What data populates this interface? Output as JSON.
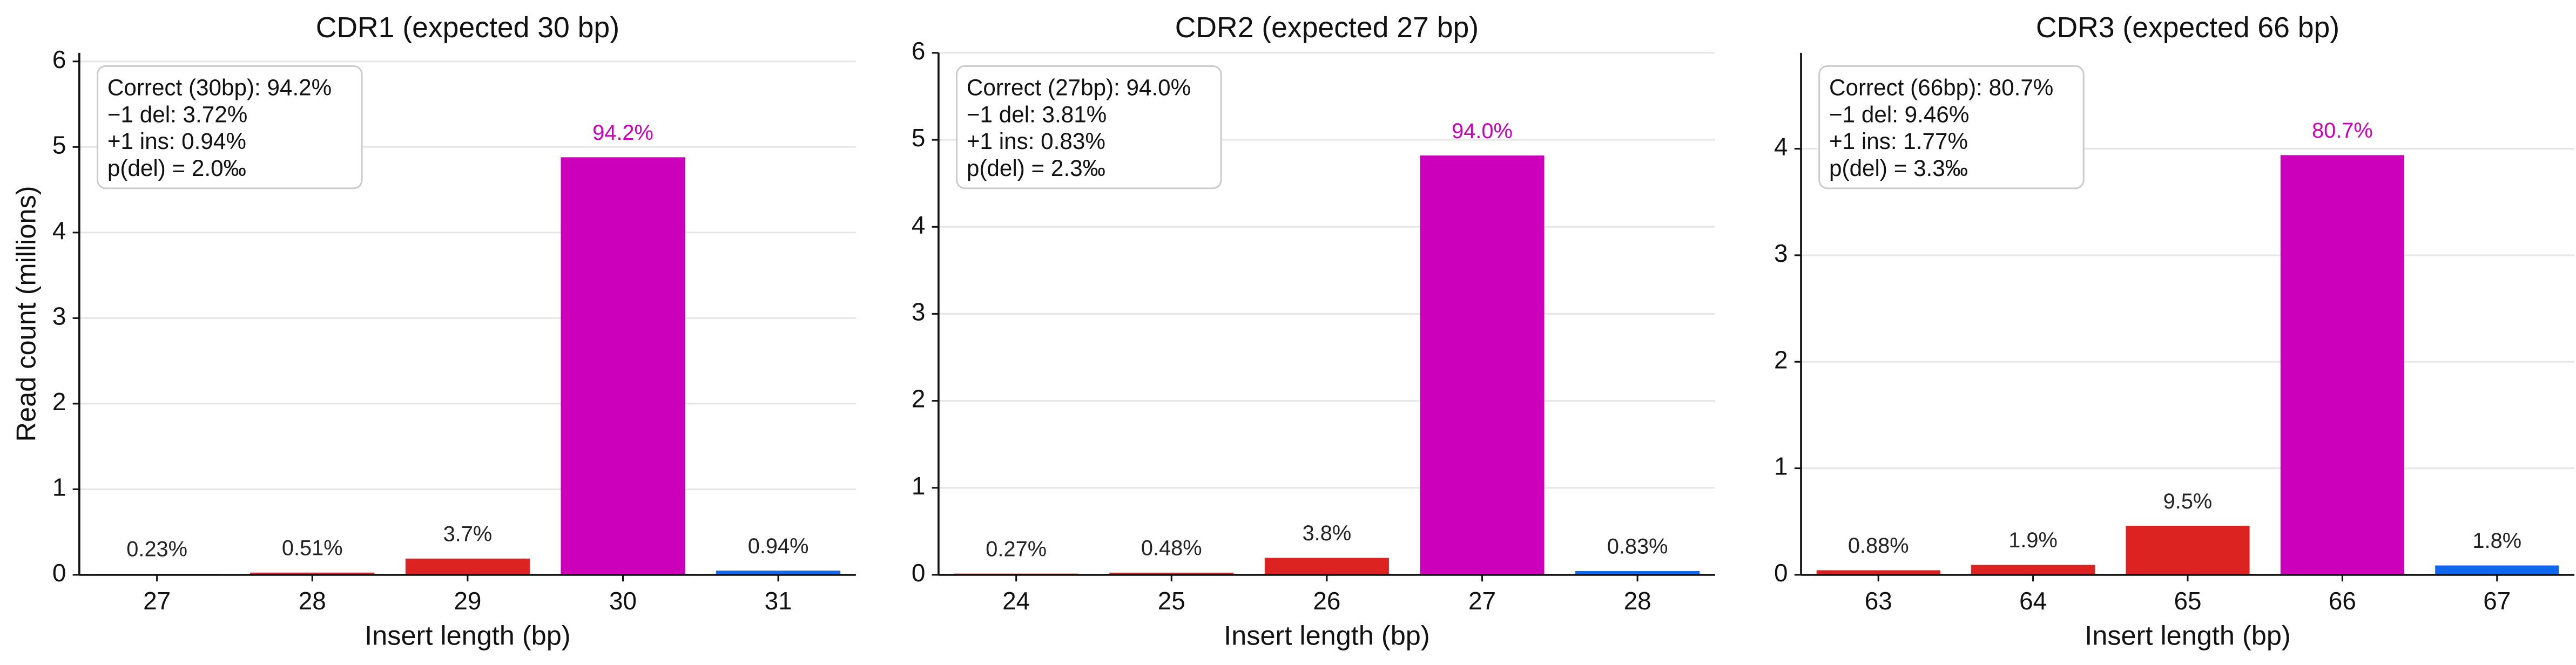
{
  "chart_data": [
    {
      "type": "bar",
      "title": "CDR1 (expected 30 bp)",
      "xlabel": "Insert length (bp)",
      "ylabel": "Read count (millions)",
      "categories": [
        "27",
        "28",
        "29",
        "30",
        "31"
      ],
      "values": [
        0.012,
        0.026,
        0.19,
        4.88,
        0.049
      ],
      "colors": [
        "#dd2222",
        "#dd2222",
        "#dd2222",
        "#cc00bb",
        "#1166ee"
      ],
      "bar_labels": [
        "0.23%",
        "0.51%",
        "3.7%",
        "94.2%",
        "0.94%"
      ],
      "bar_label_colors": [
        "#222222",
        "#222222",
        "#222222",
        "#cc00bb",
        "#222222"
      ],
      "annotation": [
        "Correct (30bp): 94.2%",
        "−1 del: 3.72%",
        "+1 ins: 0.94%",
        "p(del) = 2.0‰"
      ],
      "ylim": [
        0,
        6.1
      ],
      "yticks": [
        0,
        1,
        2,
        3,
        4,
        5,
        6
      ],
      "grid": true
    },
    {
      "type": "bar",
      "title": "CDR2 (expected 27 bp)",
      "xlabel": "Insert length (bp)",
      "categories": [
        "24",
        "25",
        "26",
        "27",
        "28"
      ],
      "values": [
        0.014,
        0.025,
        0.195,
        4.82,
        0.043
      ],
      "colors": [
        "#dd2222",
        "#dd2222",
        "#dd2222",
        "#cc00bb",
        "#1166ee"
      ],
      "bar_labels": [
        "0.27%",
        "0.48%",
        "3.8%",
        "94.0%",
        "0.83%"
      ],
      "bar_label_colors": [
        "#222222",
        "#222222",
        "#222222",
        "#cc00bb",
        "#222222"
      ],
      "annotation": [
        "Correct (27bp): 94.0%",
        "−1 del: 3.81%",
        "+1 ins: 0.83%",
        "p(del) = 2.3‰"
      ],
      "ylim": [
        0,
        6
      ],
      "yticks": [
        0,
        1,
        2,
        3,
        4,
        5,
        6
      ],
      "grid": true
    },
    {
      "type": "bar",
      "title": "CDR3 (expected 66 bp)",
      "xlabel": "Insert length (bp)",
      "categories": [
        "63",
        "64",
        "65",
        "66",
        "67"
      ],
      "values": [
        0.043,
        0.093,
        0.46,
        3.94,
        0.088
      ],
      "colors": [
        "#dd2222",
        "#dd2222",
        "#dd2222",
        "#cc00bb",
        "#1166ee"
      ],
      "bar_labels": [
        "0.88%",
        "1.9%",
        "9.5%",
        "80.7%",
        "1.8%"
      ],
      "bar_label_colors": [
        "#222222",
        "#222222",
        "#222222",
        "#cc00bb",
        "#222222"
      ],
      "annotation": [
        "Correct (66bp): 80.7%",
        "−1 del: 9.46%",
        "+1 ins: 1.77%",
        "p(del) = 3.3‰"
      ],
      "ylim": [
        0,
        4.9
      ],
      "yticks": [
        0,
        1,
        2,
        3,
        4
      ],
      "grid": true
    }
  ]
}
